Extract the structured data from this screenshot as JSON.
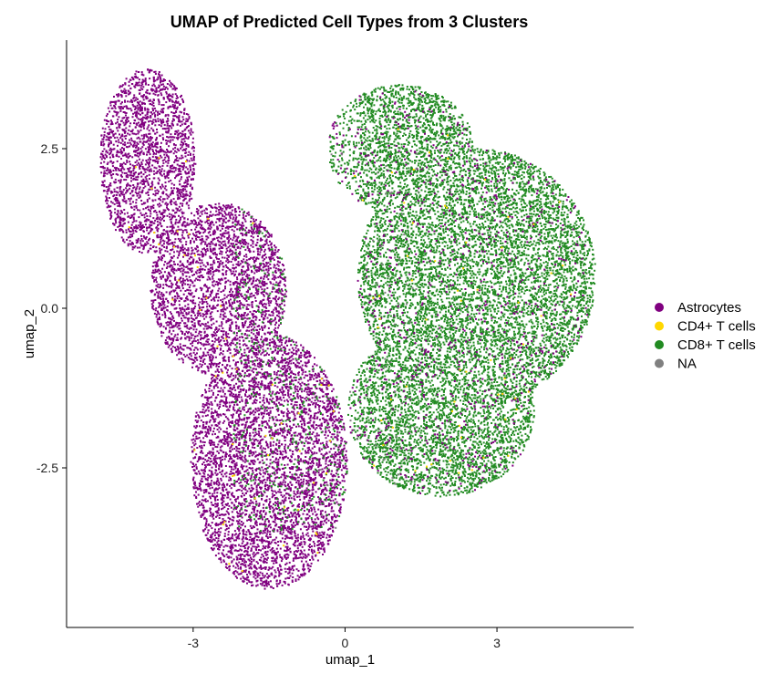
{
  "chart_data": {
    "type": "scatter",
    "title": "UMAP of Predicted Cell Types from 3 Clusters",
    "xlabel": "umap_1",
    "ylabel": "umap_2",
    "xlim": [
      -5.5,
      5.7
    ],
    "ylim": [
      -5,
      4.2
    ],
    "x_ticks": [
      {
        "value": -3,
        "label": "-3"
      },
      {
        "value": 0,
        "label": "0"
      },
      {
        "value": 3,
        "label": "3"
      }
    ],
    "y_ticks": [
      {
        "value": 2.5,
        "label": "2.5"
      },
      {
        "value": 0,
        "label": "0.0"
      },
      {
        "value": -2.5,
        "label": "-2.5"
      }
    ],
    "grid": false,
    "legend_position": "right",
    "legend": [
      {
        "name": "Astrocytes",
        "color": "#800080"
      },
      {
        "name": "CD4+ T cells",
        "color": "#FFD700"
      },
      {
        "name": "CD8+ T cells",
        "color": "#228B22"
      },
      {
        "name": "NA",
        "color": "#808080"
      }
    ],
    "series": [
      {
        "name": "Astrocytes",
        "color": "#800080",
        "x_range": [
          -5.0,
          1.0
        ],
        "y_range": [
          -4.5,
          3.8
        ],
        "regions": [
          {
            "center": [
              -3.9,
              2.4
            ],
            "spread": [
              0.9,
              1.3
            ]
          },
          {
            "center": [
              -2.6,
              0.6
            ],
            "spread": [
              1.2,
              1.3
            ]
          },
          {
            "center": [
              -1.6,
              -2.4
            ],
            "spread": [
              1.4,
              1.7
            ]
          }
        ]
      },
      {
        "name": "CD8+ T cells",
        "color": "#228B22",
        "x_range": [
          -0.6,
          5.0
        ],
        "y_range": [
          -3.3,
          3.5
        ],
        "regions": [
          {
            "center": [
              1.0,
              2.6
            ],
            "spread": [
              1.3,
              0.9
            ]
          },
          {
            "center": [
              2.5,
              0.6
            ],
            "spread": [
              2.3,
              1.9
            ]
          },
          {
            "center": [
              1.9,
              -1.7
            ],
            "spread": [
              1.8,
              1.2
            ]
          }
        ]
      },
      {
        "name": "CD4+ T cells",
        "color": "#FFD700",
        "note_sparse": true
      },
      {
        "name": "NA",
        "color": "#808080",
        "note_sparse": true
      }
    ]
  }
}
